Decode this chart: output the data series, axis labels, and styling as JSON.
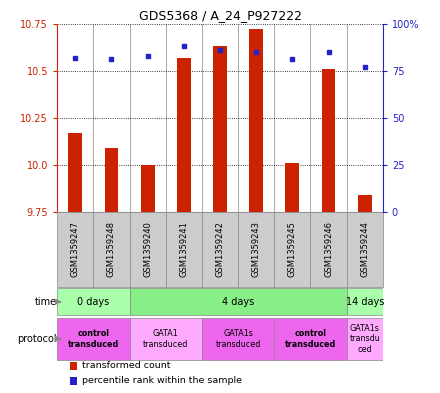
{
  "title": "GDS5368 / A_24_P927222",
  "samples": [
    "GSM1359247",
    "GSM1359248",
    "GSM1359240",
    "GSM1359241",
    "GSM1359242",
    "GSM1359243",
    "GSM1359245",
    "GSM1359246",
    "GSM1359244"
  ],
  "transformed_count": [
    10.17,
    10.09,
    10.0,
    10.57,
    10.63,
    10.72,
    10.01,
    10.51,
    9.84
  ],
  "percentile_rank": [
    82,
    81,
    83,
    88,
    86,
    85,
    81,
    85,
    77
  ],
  "ylim_left": [
    9.75,
    10.75
  ],
  "ylim_right": [
    0,
    100
  ],
  "yticks_left": [
    9.75,
    10.0,
    10.25,
    10.5,
    10.75
  ],
  "yticks_right": [
    0,
    25,
    50,
    75,
    100
  ],
  "ytick_labels_right": [
    "0",
    "25",
    "50",
    "75",
    "100%"
  ],
  "bar_color": "#cc2200",
  "dot_color": "#2222cc",
  "bar_bottom": 9.75,
  "time_groups": [
    {
      "label": "0 days",
      "start": 0,
      "end": 2,
      "color": "#aaffaa"
    },
    {
      "label": "4 days",
      "start": 2,
      "end": 8,
      "color": "#88ee88"
    },
    {
      "label": "14 days",
      "start": 8,
      "end": 9,
      "color": "#aaffaa"
    }
  ],
  "protocol_groups": [
    {
      "label": "control\ntransduced",
      "start": 0,
      "end": 2,
      "color": "#ee66ee",
      "bold": true
    },
    {
      "label": "GATA1\ntransduced",
      "start": 2,
      "end": 4,
      "color": "#ffaaff",
      "bold": false
    },
    {
      "label": "GATA1s\ntransduced",
      "start": 4,
      "end": 6,
      "color": "#ee66ee",
      "bold": false
    },
    {
      "label": "control\ntransduced",
      "start": 6,
      "end": 8,
      "color": "#ee66ee",
      "bold": true
    },
    {
      "label": "GATA1s\ntransdu\nced",
      "start": 8,
      "end": 9,
      "color": "#ffaaff",
      "bold": false
    }
  ],
  "legend_items": [
    {
      "color": "#cc2200",
      "label": "transformed count"
    },
    {
      "color": "#2222cc",
      "label": "percentile rank within the sample"
    }
  ],
  "sample_box_color": "#cccccc",
  "sample_box_edgecolor": "#888888"
}
